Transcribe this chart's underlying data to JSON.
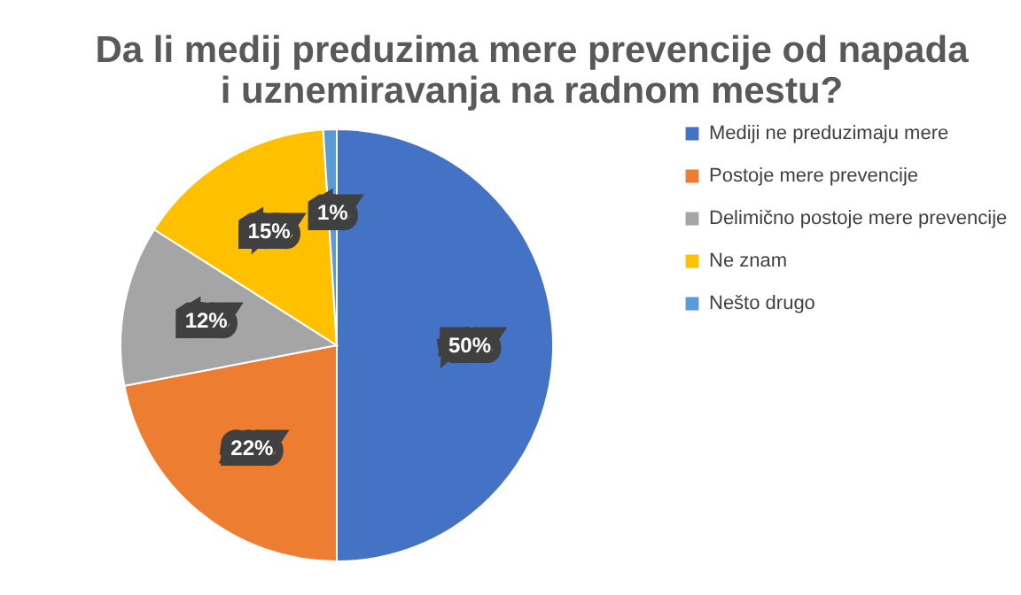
{
  "chart_data": {
    "type": "pie",
    "title": "Da li medij preduzima mere prevencije od napada i uznemiravanja na radnom mestu?",
    "categories": [
      "Mediji ne preduzimaju mere",
      "Postoje mere prevencije",
      "Delimično postoje mere prevencije",
      "Ne znam",
      "Nešto drugo"
    ],
    "values": [
      50,
      22,
      12,
      15,
      1
    ],
    "colors": [
      "#4472c4",
      "#ed7d31",
      "#a5a5a5",
      "#ffc000",
      "#5b9bd5"
    ],
    "value_labels": [
      "50%",
      "22%",
      "12%",
      "15%",
      "1%"
    ],
    "legend": "right"
  }
}
